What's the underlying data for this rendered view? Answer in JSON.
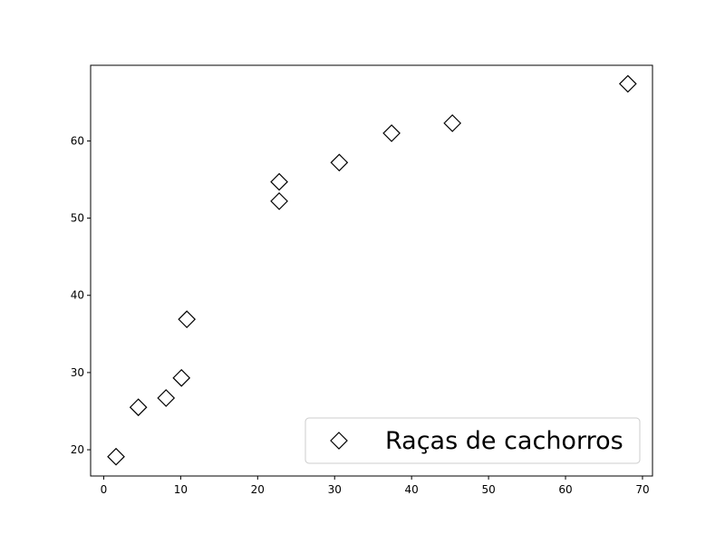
{
  "chart_data": {
    "type": "scatter",
    "title": "",
    "xlabel": "",
    "ylabel": "",
    "xlim": [
      -1.7,
      71.3
    ],
    "ylim": [
      16.6,
      69.8
    ],
    "xticks": [
      0,
      10,
      20,
      30,
      40,
      50,
      60,
      70
    ],
    "yticks": [
      20,
      30,
      40,
      50,
      60
    ],
    "grid": false,
    "legend_position": "lower-right",
    "marker": "diamond",
    "marker_fill": "#ffffff",
    "marker_edge": "#000000",
    "series": [
      {
        "name": "Raças de cachorros",
        "points": [
          {
            "x": 1.6,
            "y": 19.1
          },
          {
            "x": 4.5,
            "y": 25.5
          },
          {
            "x": 8.1,
            "y": 26.7
          },
          {
            "x": 10.1,
            "y": 29.3
          },
          {
            "x": 10.8,
            "y": 36.9
          },
          {
            "x": 22.8,
            "y": 52.2
          },
          {
            "x": 22.8,
            "y": 54.7
          },
          {
            "x": 30.6,
            "y": 57.2
          },
          {
            "x": 37.4,
            "y": 61.0
          },
          {
            "x": 45.3,
            "y": 62.3
          },
          {
            "x": 68.1,
            "y": 67.4
          }
        ]
      }
    ]
  }
}
